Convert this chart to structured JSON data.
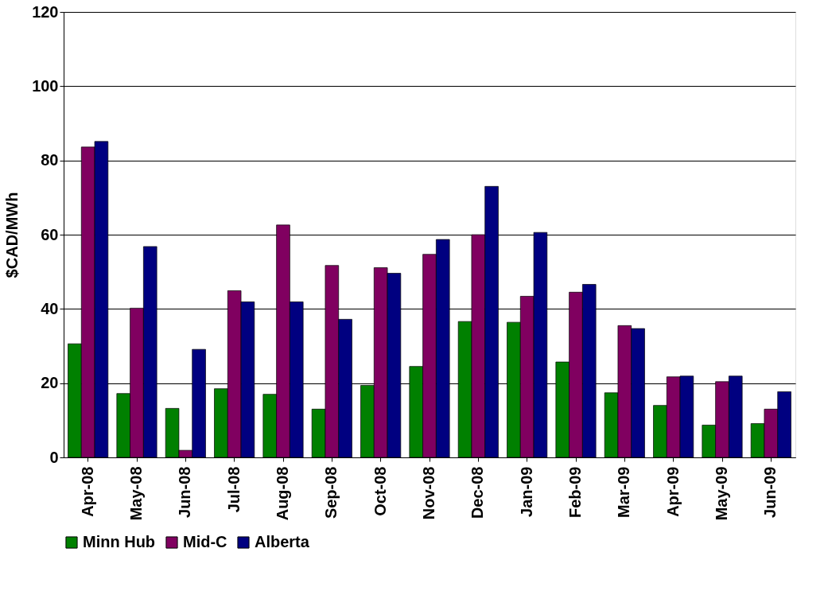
{
  "chart_data": {
    "type": "bar",
    "ylabel": "$CAD/MWh",
    "categories": [
      "Apr-08",
      "May-08",
      "Jun-08",
      "Jul-08",
      "Aug-08",
      "Sep-08",
      "Oct-08",
      "Nov-08",
      "Dec-08",
      "Jan-09",
      "Feb-09",
      "Mar-09",
      "Apr-09",
      "May-09",
      "Jun-09"
    ],
    "series": [
      {
        "name": "Minn Hub",
        "color": "#008000",
        "values": [
          30.6,
          17.2,
          13.2,
          18.5,
          17.0,
          13.0,
          19.4,
          24.5,
          36.6,
          36.4,
          25.7,
          17.4,
          14.0,
          8.7,
          9.1
        ]
      },
      {
        "name": "Mid-C",
        "color": "#800060",
        "values": [
          83.6,
          40.2,
          1.9,
          44.9,
          62.6,
          51.7,
          51.1,
          54.7,
          60.0,
          43.4,
          44.5,
          35.5,
          21.7,
          20.4,
          13.0
        ]
      },
      {
        "name": "Alberta",
        "color": "#000080",
        "values": [
          85.1,
          56.8,
          29.1,
          41.9,
          41.9,
          37.2,
          49.6,
          58.7,
          73.0,
          60.6,
          46.6,
          34.7,
          21.9,
          21.9,
          17.7
        ]
      }
    ],
    "ylim": [
      0,
      120
    ],
    "yticks": [
      0,
      20,
      40,
      60,
      80,
      100,
      120
    ],
    "grid": "y",
    "legend": "bottom"
  }
}
